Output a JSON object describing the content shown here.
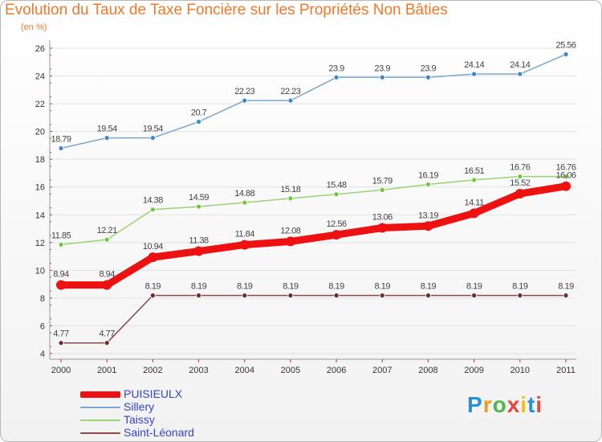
{
  "header": {
    "title": "Evolution du Taux de Taxe Foncière sur les Propriétés Non Bâties",
    "subtitle": "(en %)"
  },
  "logo": {
    "letters": [
      "P",
      "r",
      "o",
      "x",
      "i",
      "t",
      "i"
    ]
  },
  "chart_data": {
    "type": "line",
    "title": "Evolution du Taux de Taxe Foncière sur les Propriétés Non Bâties",
    "ylabel": "(en %)",
    "xlabel": "",
    "x": [
      "2000",
      "2001",
      "2002",
      "2003",
      "2004",
      "2005",
      "2006",
      "2007",
      "2008",
      "2009",
      "2010",
      "2011"
    ],
    "ylim": [
      4,
      26
    ],
    "yticks": [
      "4",
      "6",
      "8",
      "10",
      "12",
      "14",
      "16",
      "18",
      "20",
      "22",
      "24",
      "26"
    ],
    "grid": "horizontal",
    "legend_position": "bottom-left",
    "series": [
      {
        "name": "PUISIEULX",
        "color": "#ee1111",
        "values": [
          8.94,
          8.94,
          10.94,
          11.38,
          11.84,
          12.08,
          12.56,
          13.06,
          13.19,
          14.11,
          15.52,
          16.06
        ],
        "labels": [
          "8.94",
          "8.94",
          "10.94",
          "11.38",
          "11.84",
          "12.08",
          "12.56",
          "13.06",
          "13.19",
          "14.11",
          "15.52",
          "16.06"
        ]
      },
      {
        "name": "Sillery",
        "color": "#7aa6d0",
        "values": [
          18.79,
          19.54,
          19.54,
          20.7,
          22.23,
          22.23,
          23.9,
          23.9,
          23.9,
          24.14,
          24.14,
          25.56
        ],
        "labels": [
          "18.79",
          "19.54",
          "19.54",
          "20.7",
          "22.23",
          "22.23",
          "23.9",
          "23.9",
          "23.9",
          "24.14",
          "24.14",
          "25.56"
        ]
      },
      {
        "name": "Taissy",
        "color": "#9ad470",
        "values": [
          11.85,
          12.21,
          14.38,
          14.59,
          14.88,
          15.18,
          15.48,
          15.79,
          16.19,
          16.51,
          16.76,
          16.76
        ],
        "labels": [
          "11.85",
          "12.21",
          "14.38",
          "14.59",
          "14.88",
          "15.18",
          "15.48",
          "15.79",
          "16.19",
          "16.51",
          "16.76",
          "16.76"
        ]
      },
      {
        "name": "Saint-Léonard",
        "color": "#8a4a4a",
        "values": [
          4.77,
          4.77,
          8.19,
          8.19,
          8.19,
          8.19,
          8.19,
          8.19,
          8.19,
          8.19,
          8.19,
          8.19
        ],
        "labels": [
          "4.77",
          "4.77",
          "8.19",
          "8.19",
          "8.19",
          "8.19",
          "8.19",
          "8.19",
          "8.19",
          "8.19",
          "8.19",
          "8.19"
        ]
      }
    ]
  }
}
